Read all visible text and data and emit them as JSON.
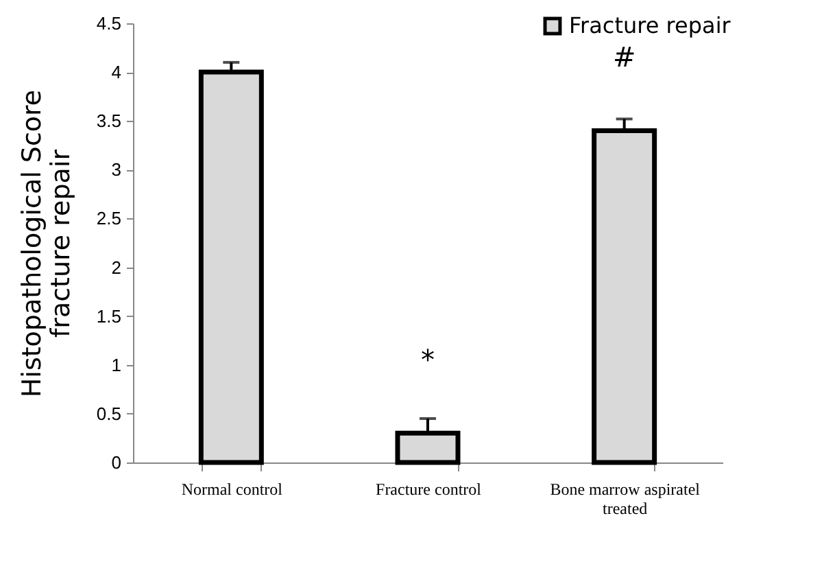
{
  "chart_data": {
    "type": "bar",
    "ylabel": "Histopathological Score\nfracture repair",
    "categories": [
      "Normal control",
      "Fracture control",
      "Bone marrow aspiratel treated"
    ],
    "series": [
      {
        "name": "Fracture repair",
        "color": "#d9d9d9",
        "values": [
          4.0,
          0.3,
          3.4
        ],
        "errors": [
          0.1,
          0.15,
          0.12
        ]
      }
    ],
    "ylim": [
      0,
      4.5
    ],
    "yticks": [
      0,
      0.5,
      1,
      1.5,
      2,
      2.5,
      3,
      3.5,
      4,
      4.5
    ],
    "grid": false,
    "legend": "top right",
    "annotations": [
      "*",
      "#"
    ]
  }
}
